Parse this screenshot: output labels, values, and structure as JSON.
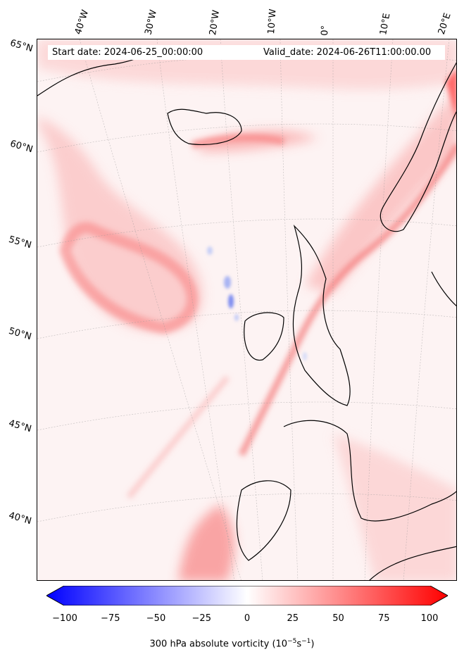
{
  "header": {
    "start_date": "Start date: 2024-06-25_00:00:00",
    "valid_date": "Valid_date: 2024-06-26T11:00:00.00"
  },
  "map": {
    "field": "300 hPa absolute vorticity",
    "lon_labels": [
      "40°W",
      "30°W",
      "20°W",
      "10°W",
      "0°",
      "10°E",
      "20°E"
    ],
    "lat_labels": [
      "65°N",
      "60°N",
      "55°N",
      "50°N",
      "45°N",
      "40°N"
    ]
  },
  "colorbar": {
    "min": -100,
    "max": 100,
    "ticks": [
      "−100",
      "−75",
      "−50",
      "−25",
      "0",
      "25",
      "50",
      "75",
      "100"
    ],
    "label_main": "300 hPa absolute vorticity (10",
    "label_exp1": "−5",
    "label_mid": "s",
    "label_exp2": "−1",
    "label_end": ")",
    "colors": {
      "min": "#0000ff",
      "mid": "#ffffff",
      "max": "#ff0000"
    }
  }
}
